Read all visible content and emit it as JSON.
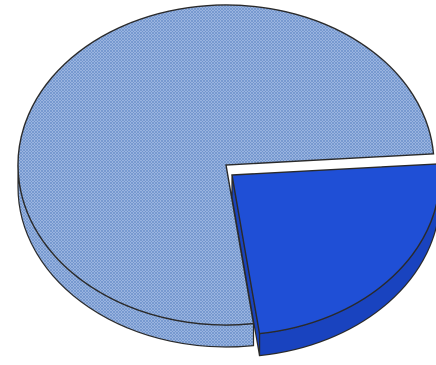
{
  "chart_data": {
    "type": "pie",
    "style": "3d-tilted",
    "title": "",
    "legend": "none",
    "labels": "none",
    "slices": [
      {
        "value": 76,
        "color": "#8fb0e0",
        "pattern": "crosshatch",
        "exploded": false
      },
      {
        "value": 24,
        "color": "#1f4fd6",
        "pattern": "solid",
        "exploded": true
      }
    ]
  },
  "colors": {
    "outline": "#2a2a2a",
    "hatch_dark": "#6f93cc",
    "hatch_light": "#b4c9ec",
    "solid_side": "#1943bf"
  }
}
